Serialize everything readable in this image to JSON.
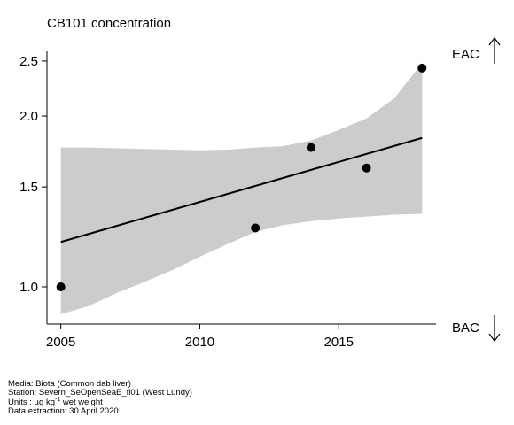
{
  "chart_data": {
    "type": "scatter",
    "title": "CB101 concentration",
    "x_scale": "linear",
    "y_scale": "log",
    "xlim": [
      2004.5,
      2018.5
    ],
    "ylim": [
      0.86,
      2.6
    ],
    "x_ticks": [
      2005,
      2010,
      2015
    ],
    "x_tick_labels": [
      "2005",
      "2010",
      "2015"
    ],
    "y_ticks": [
      1.0,
      1.5,
      2.0,
      2.5
    ],
    "y_tick_labels": [
      "1.0",
      "1.5",
      "2.0",
      "2.5"
    ],
    "points": [
      {
        "x": 2005,
        "y": 1.0
      },
      {
        "x": 2012,
        "y": 1.27
      },
      {
        "x": 2014,
        "y": 1.76
      },
      {
        "x": 2016,
        "y": 1.62
      },
      {
        "x": 2018,
        "y": 2.43
      }
    ],
    "trend": {
      "x": [
        2005,
        2018
      ],
      "y": [
        1.2,
        1.83
      ]
    },
    "confidence_band": {
      "x": [
        2005,
        2006,
        2007,
        2008,
        2009,
        2010,
        2011,
        2012,
        2013,
        2014,
        2015,
        2016,
        2017,
        2018
      ],
      "lower": [
        0.895,
        0.925,
        0.975,
        1.02,
        1.07,
        1.13,
        1.19,
        1.25,
        1.285,
        1.305,
        1.32,
        1.33,
        1.34,
        1.345
      ],
      "upper": [
        1.76,
        1.76,
        1.755,
        1.75,
        1.745,
        1.74,
        1.745,
        1.76,
        1.77,
        1.81,
        1.89,
        1.98,
        2.15,
        2.48
      ]
    },
    "reference_labels": {
      "top": "EAC",
      "bottom": "BAC"
    },
    "colors": {
      "band": "#cccccc",
      "line": "#000000",
      "points": "#000000"
    }
  },
  "footer": {
    "media": "Media: Biota (Common dab liver)",
    "station": "Station: Severn_SeOpenSeaE_fi01 (West Lundy)",
    "units_prefix": "Units : µg kg",
    "units_sup": "-1",
    "units_suffix": " wet weight",
    "extraction": "Data extraction: 30 April 2020"
  }
}
